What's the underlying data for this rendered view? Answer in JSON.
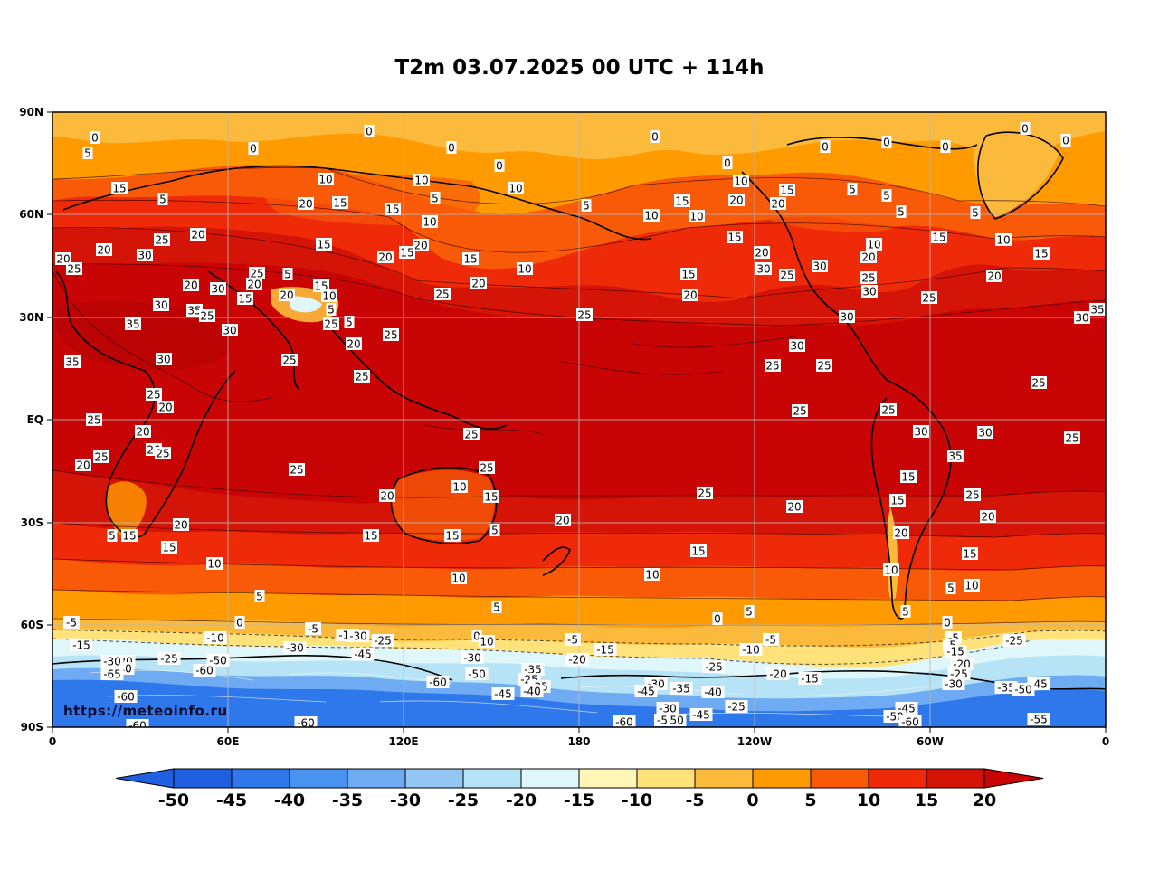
{
  "title": "T2m 03.07.2025 00 UTC + 114h",
  "watermark": "https://meteoinfo.ru",
  "lat_labels": [
    "90N",
    "60N",
    "30N",
    "EQ",
    "30S",
    "60S",
    "90S"
  ],
  "lon_labels": [
    "0",
    "60E",
    "120E",
    "180",
    "120W",
    "60W",
    "0"
  ],
  "colorbar": {
    "levels": [
      "-50",
      "-45",
      "-40",
      "-35",
      "-30",
      "-25",
      "-20",
      "-15",
      "-10",
      "-5",
      "0",
      "5",
      "10",
      "15",
      "20"
    ],
    "colors": [
      "#1f5fe0",
      "#2f78ec",
      "#4a92f0",
      "#6fabf2",
      "#94c6f4",
      "#b6e4f6",
      "#dff6fa",
      "#fff6b8",
      "#ffe27a",
      "#fcba3c",
      "#ff9a00",
      "#f85a08",
      "#ee2a08",
      "#d41406",
      "#c80404"
    ],
    "under_color": "#1f5fe0",
    "over_color": "#c80404"
  },
  "palette": {
    "tropical": "#c80404",
    "warm": "#d41406",
    "mild": "#ee2a08",
    "cool": "#f85a08",
    "cold": "#ff9a00",
    "chill": "#fcba3c",
    "frost": "#ffe27a",
    "ice_light": "#dff6fa",
    "ice": "#b6e4f6",
    "polar": "#2f78ec",
    "deep_polar": "#1f5fe0"
  },
  "contour_labels": [
    [
      "0",
      105,
      152
    ],
    [
      "5",
      97,
      169
    ],
    [
      "0",
      280,
      164
    ],
    [
      "0",
      408,
      145
    ],
    [
      "0",
      499,
      163
    ],
    [
      "0",
      552,
      183
    ],
    [
      "0",
      724,
      151
    ],
    [
      "0",
      804,
      180
    ],
    [
      "0",
      912,
      162
    ],
    [
      "0",
      980,
      157
    ],
    [
      "0",
      1045,
      162
    ],
    [
      "0",
      1133,
      142
    ],
    [
      "0",
      1178,
      155
    ],
    [
      "15",
      132,
      208
    ],
    [
      "5",
      180,
      220
    ],
    [
      "10",
      360,
      198
    ],
    [
      "20",
      338,
      225
    ],
    [
      "15",
      376,
      224
    ],
    [
      "10",
      466,
      199
    ],
    [
      "5",
      481,
      219
    ],
    [
      "10",
      570,
      208
    ],
    [
      "5",
      648,
      227
    ],
    [
      "15",
      754,
      222
    ],
    [
      "10",
      819,
      200
    ],
    [
      "20",
      814,
      221
    ],
    [
      "20",
      860,
      225
    ],
    [
      "15",
      870,
      210
    ],
    [
      "5",
      942,
      209
    ],
    [
      "5",
      980,
      216
    ],
    [
      "5",
      996,
      234
    ],
    [
      "5",
      1078,
      235
    ],
    [
      "20",
      115,
      276
    ],
    [
      "30",
      160,
      282
    ],
    [
      "25",
      179,
      265
    ],
    [
      "20",
      219,
      259
    ],
    [
      "20",
      70,
      286
    ],
    [
      "25",
      82,
      297
    ],
    [
      "15",
      434,
      231
    ],
    [
      "10",
      475,
      245
    ],
    [
      "15",
      358,
      270
    ],
    [
      "20",
      426,
      284
    ],
    [
      "20",
      465,
      271
    ],
    [
      "15",
      450,
      279
    ],
    [
      "10",
      720,
      238
    ],
    [
      "10",
      770,
      239
    ],
    [
      "15",
      812,
      262
    ],
    [
      "20",
      842,
      279
    ],
    [
      "30",
      844,
      297
    ],
    [
      "25",
      870,
      304
    ],
    [
      "30",
      906,
      294
    ],
    [
      "20",
      960,
      284
    ],
    [
      "10",
      966,
      270
    ],
    [
      "15",
      1038,
      262
    ],
    [
      "10",
      1109,
      265
    ],
    [
      "15",
      1151,
      280
    ],
    [
      "20",
      1099,
      305
    ],
    [
      "20",
      211,
      315
    ],
    [
      "30",
      241,
      319
    ],
    [
      "25",
      284,
      302
    ],
    [
      "20",
      281,
      314
    ],
    [
      "5",
      318,
      303
    ],
    [
      "20",
      317,
      326
    ],
    [
      "15",
      355,
      316
    ],
    [
      "10",
      364,
      327
    ],
    [
      "15",
      271,
      330
    ],
    [
      "5",
      366,
      342
    ],
    [
      "25",
      366,
      358
    ],
    [
      "5",
      386,
      356
    ],
    [
      "15",
      520,
      286
    ],
    [
      "20",
      529,
      313
    ],
    [
      "25",
      489,
      325
    ],
    [
      "10",
      580,
      297
    ],
    [
      "15",
      761,
      303
    ],
    [
      "20",
      763,
      326
    ],
    [
      "25",
      960,
      307
    ],
    [
      "30",
      961,
      322
    ],
    [
      "25",
      1027,
      329
    ],
    [
      "30",
      178,
      337
    ],
    [
      "35",
      215,
      343
    ],
    [
      "25",
      229,
      349
    ],
    [
      "35",
      147,
      358
    ],
    [
      "30",
      254,
      365
    ],
    [
      "20",
      391,
      380
    ],
    [
      "25",
      432,
      370
    ],
    [
      "25",
      646,
      348
    ],
    [
      "30",
      936,
      350
    ],
    [
      "30",
      1196,
      351
    ],
    [
      "35",
      1213,
      342
    ],
    [
      "30",
      181,
      397
    ],
    [
      "35",
      80,
      400
    ],
    [
      "25",
      320,
      398
    ],
    [
      "25",
      400,
      416
    ],
    [
      "30",
      881,
      382
    ],
    [
      "25",
      854,
      404
    ],
    [
      "25",
      911,
      404
    ],
    [
      "25",
      1148,
      423
    ],
    [
      "25",
      170,
      436
    ],
    [
      "20",
      183,
      450
    ],
    [
      "25",
      104,
      464
    ],
    [
      "25",
      884,
      454
    ],
    [
      "25",
      982,
      453
    ],
    [
      "30",
      1018,
      477
    ],
    [
      "30",
      1089,
      478
    ],
    [
      "25",
      1185,
      484
    ],
    [
      "20",
      158,
      477
    ],
    [
      "20",
      170,
      497
    ],
    [
      "25",
      180,
      501
    ],
    [
      "25",
      112,
      505
    ],
    [
      "20",
      92,
      514
    ],
    [
      "25",
      521,
      480
    ],
    [
      "25",
      328,
      519
    ],
    [
      "25",
      538,
      517
    ],
    [
      "35",
      1056,
      504
    ],
    [
      "15",
      1004,
      527
    ],
    [
      "20",
      428,
      548
    ],
    [
      "10",
      508,
      538
    ],
    [
      "15",
      543,
      549
    ],
    [
      "25",
      779,
      545
    ],
    [
      "20",
      878,
      560
    ],
    [
      "15",
      992,
      553
    ],
    [
      "25",
      1075,
      547
    ],
    [
      "20",
      1092,
      571
    ],
    [
      "20",
      622,
      575
    ],
    [
      "20",
      200,
      580
    ],
    [
      "15",
      143,
      592
    ],
    [
      "5",
      124,
      592
    ],
    [
      "15",
      410,
      592
    ],
    [
      "15",
      500,
      592
    ],
    [
      "5",
      547,
      586
    ],
    [
      "20",
      996,
      589
    ],
    [
      "15",
      772,
      609
    ],
    [
      "15",
      1072,
      612
    ],
    [
      "15",
      187,
      605
    ],
    [
      "10",
      237,
      623
    ],
    [
      "5",
      287,
      659
    ],
    [
      "10",
      507,
      639
    ],
    [
      "10",
      721,
      635
    ],
    [
      "10",
      985,
      630
    ],
    [
      "10",
      1074,
      647
    ],
    [
      "5",
      1051,
      650
    ],
    [
      "5",
      549,
      671
    ],
    [
      "5",
      828,
      676
    ],
    [
      "5",
      1001,
      676
    ],
    [
      "-5",
      79,
      688
    ],
    [
      "0",
      265,
      688
    ],
    [
      "0",
      793,
      684
    ],
    [
      "0",
      1047,
      688
    ],
    [
      "-10",
      238,
      705
    ],
    [
      "-5",
      346,
      695
    ],
    [
      "-15",
      384,
      702
    ],
    [
      "-30",
      396,
      703
    ],
    [
      "-25",
      423,
      708
    ],
    [
      "0",
      527,
      703
    ],
    [
      "10",
      538,
      709
    ],
    [
      "-5",
      633,
      707
    ],
    [
      "-15",
      669,
      718
    ],
    [
      "-5",
      852,
      707
    ],
    [
      "-10",
      830,
      718
    ],
    [
      "-5",
      1054,
      705
    ],
    [
      "-5",
      1051,
      713
    ],
    [
      "-25",
      1121,
      708
    ],
    [
      "-15",
      90,
      713
    ],
    [
      "-30",
      326,
      716
    ],
    [
      "-45",
      401,
      723
    ],
    [
      "-30",
      522,
      727
    ],
    [
      "-20",
      638,
      729
    ],
    [
      "-15",
      1056,
      720
    ],
    [
      "-20",
      1063,
      734
    ],
    [
      "-25",
      1060,
      745
    ],
    [
      "-20",
      137,
      731
    ],
    [
      "-25",
      187,
      728
    ],
    [
      "-50",
      241,
      730
    ],
    [
      "-40",
      136,
      739
    ],
    [
      "-30",
      124,
      731
    ],
    [
      "-60",
      226,
      741
    ],
    [
      "-65",
      124,
      745
    ],
    [
      "-50",
      527,
      745
    ],
    [
      "-35",
      589,
      740
    ],
    [
      "-25",
      585,
      751
    ],
    [
      "-25",
      789,
      737
    ],
    [
      "-20",
      860,
      745
    ],
    [
      "-15",
      895,
      750
    ],
    [
      "-30",
      1054,
      756
    ],
    [
      "-60",
      484,
      754
    ],
    [
      "-35",
      596,
      759
    ],
    [
      "-40",
      588,
      764
    ],
    [
      "-45",
      556,
      767
    ],
    [
      "-30",
      725,
      756
    ],
    [
      "-35",
      753,
      761
    ],
    [
      "-40",
      788,
      765
    ],
    [
      "-45",
      714,
      764
    ],
    [
      "-35",
      1112,
      760
    ],
    [
      "-45",
      1148,
      756
    ],
    [
      "-50",
      1131,
      762
    ],
    [
      "-60",
      139,
      770
    ],
    [
      "-30",
      738,
      783
    ],
    [
      "-25",
      814,
      781
    ],
    [
      "-45",
      1002,
      783
    ],
    [
      "-50",
      989,
      792
    ],
    [
      "-60",
      1006,
      798
    ],
    [
      "-45",
      775,
      790
    ],
    [
      "-50",
      746,
      796
    ],
    [
      "-60",
      690,
      798
    ],
    [
      "-5",
      732,
      796
    ],
    [
      "-60",
      338,
      799
    ],
    [
      "-60",
      152,
      802
    ],
    [
      "-55",
      1148,
      795
    ]
  ]
}
